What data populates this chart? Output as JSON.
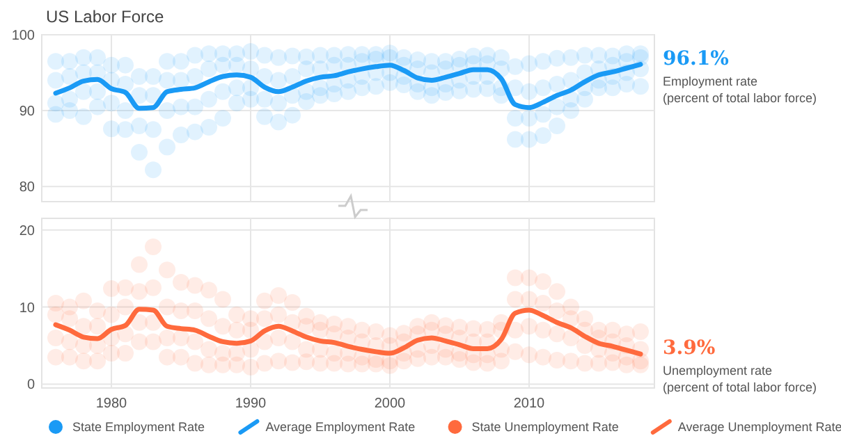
{
  "chart_data": [
    {
      "type": "scatter",
      "title": "US Labor Force",
      "xlim": [
        1975,
        2019
      ],
      "xticks": [
        1980,
        1990,
        2000,
        2010
      ],
      "ylim": [
        78,
        100
      ],
      "yticks": [
        80,
        90,
        100
      ],
      "grid": true,
      "tick_labels": "y",
      "legend": "bottom",
      "annotations": [
        {
          "text": "96.1%",
          "x": 2018,
          "y": 96.1
        },
        "Employment rate",
        "(percent of total labor force)"
      ],
      "series": [
        {
          "name": "State Employment Rate",
          "marker": "circle",
          "color": "#1a9af5",
          "x": [
            1976,
            1976,
            1976,
            1976,
            1977,
            1977,
            1977,
            1977,
            1978,
            1978,
            1978,
            1978,
            1979,
            1979,
            1979,
            1979,
            1980,
            1980,
            1980,
            1980,
            1981,
            1981,
            1981,
            1981,
            1982,
            1982,
            1982,
            1982,
            1983,
            1983,
            1983,
            1983,
            1984,
            1984,
            1984,
            1984,
            1985,
            1985,
            1985,
            1985,
            1986,
            1986,
            1986,
            1986,
            1987,
            1987,
            1987,
            1987,
            1988,
            1988,
            1988,
            1988,
            1989,
            1989,
            1989,
            1989,
            1990,
            1990,
            1990,
            1990,
            1991,
            1991,
            1991,
            1991,
            1992,
            1992,
            1992,
            1992,
            1993,
            1993,
            1993,
            1993,
            1994,
            1994,
            1994,
            1994,
            1995,
            1995,
            1995,
            1995,
            1996,
            1996,
            1996,
            1996,
            1997,
            1997,
            1997,
            1997,
            1998,
            1998,
            1998,
            1998,
            1999,
            1999,
            1999,
            1999,
            2000,
            2000,
            2000,
            2000,
            2001,
            2001,
            2001,
            2001,
            2002,
            2002,
            2002,
            2002,
            2003,
            2003,
            2003,
            2003,
            2004,
            2004,
            2004,
            2004,
            2005,
            2005,
            2005,
            2005,
            2006,
            2006,
            2006,
            2006,
            2007,
            2007,
            2007,
            2007,
            2008,
            2008,
            2008,
            2008,
            2009,
            2009,
            2009,
            2009,
            2010,
            2010,
            2010,
            2010,
            2011,
            2011,
            2011,
            2011,
            2012,
            2012,
            2012,
            2012,
            2013,
            2013,
            2013,
            2013,
            2014,
            2014,
            2014,
            2014,
            2015,
            2015,
            2015,
            2015,
            2016,
            2016,
            2016,
            2016,
            2017,
            2017,
            2017,
            2017,
            2018,
            2018,
            2018,
            2018
          ],
          "values": [
            96.5,
            94,
            91,
            89.5,
            96.5,
            94.5,
            91.5,
            90,
            97,
            95,
            92.5,
            89.2,
            97,
            95,
            92.5,
            90.5,
            96,
            94,
            91,
            87.6,
            96,
            93.5,
            90,
            87.5,
            94.5,
            92,
            88,
            84.5,
            94.5,
            92,
            87.5,
            82.2,
            96.5,
            94,
            90,
            85.2,
            96.5,
            94,
            90.5,
            86.8,
            97.3,
            94.5,
            90.5,
            87.2,
            97.5,
            95.5,
            91.5,
            87.8,
            97.5,
            96,
            92.5,
            89,
            97.5,
            96,
            93,
            91,
            97.8,
            95.5,
            93,
            91.5,
            97.3,
            94.5,
            91.5,
            89.2,
            97,
            94,
            91,
            88.5,
            97.2,
            94.5,
            92,
            89.4,
            97.1,
            95.5,
            92.5,
            91.2,
            97.3,
            95.5,
            93,
            92,
            97.3,
            96,
            93.5,
            92.2,
            97.4,
            96,
            94,
            92.5,
            97.4,
            96.5,
            94.5,
            93,
            97.4,
            96.8,
            95,
            93.2,
            97.6,
            97,
            95,
            93.7,
            97,
            96,
            94.5,
            93.4,
            96.7,
            95.5,
            93.5,
            92.5,
            96.5,
            95,
            93,
            92,
            96.5,
            95.5,
            93.5,
            92.4,
            96.8,
            96,
            94,
            92.6,
            97.2,
            96.2,
            94.5,
            92.8,
            97.3,
            96.2,
            94.5,
            92.9,
            97,
            95.5,
            93,
            92,
            95.8,
            93,
            89,
            86.2,
            96.2,
            92.5,
            89,
            86.2,
            96.5,
            93,
            89.5,
            86.7,
            96.9,
            93.5,
            90.5,
            88,
            97,
            94,
            91.5,
            90,
            97.3,
            95,
            93,
            91.5,
            97.3,
            95.5,
            94,
            93,
            97.2,
            96,
            94.5,
            93,
            97.5,
            96.5,
            95,
            93.5,
            97.5,
            97,
            95.5,
            93.2
          ]
        },
        {
          "name": "Average Employment Rate",
          "type": "line",
          "color": "#1a9af5",
          "x": [
            1976,
            1977,
            1978,
            1979,
            1980,
            1981,
            1982,
            1983,
            1984,
            1985,
            1986,
            1987,
            1988,
            1989,
            1990,
            1991,
            1992,
            1993,
            1994,
            1995,
            1996,
            1997,
            1998,
            1999,
            2000,
            2001,
            2002,
            2003,
            2004,
            2005,
            2006,
            2007,
            2008,
            2009,
            2010,
            2011,
            2012,
            2013,
            2014,
            2015,
            2016,
            2017,
            2018
          ],
          "values": [
            92.3,
            93.0,
            93.9,
            94.1,
            92.9,
            92.4,
            90.3,
            90.4,
            92.5,
            92.8,
            93.0,
            93.8,
            94.5,
            94.7,
            94.4,
            93.1,
            92.5,
            93.1,
            93.9,
            94.4,
            94.6,
            95.1,
            95.5,
            95.8,
            96.0,
            95.3,
            94.3,
            94.0,
            94.4,
            94.9,
            95.4,
            95.4,
            94.2,
            90.8,
            90.4,
            91.1,
            92.0,
            92.7,
            93.8,
            94.7,
            95.1,
            95.6,
            96.1
          ]
        }
      ]
    },
    {
      "type": "scatter",
      "xlim": [
        1975,
        2019
      ],
      "xticks": [
        1980,
        1990,
        2000,
        2010
      ],
      "ylim": [
        -0.5,
        21.5
      ],
      "yticks": [
        0,
        10,
        20
      ],
      "grid": true,
      "legend": "bottom",
      "annotations": [
        {
          "text": "3.9%",
          "x": 2018,
          "y": 3.9
        },
        "Unemployment rate",
        "(percent of total labor force)"
      ],
      "series": [
        {
          "name": "State Unemployment Rate",
          "marker": "circle",
          "color": "#ff6a3d",
          "x": [
            1976,
            1976,
            1976,
            1976,
            1977,
            1977,
            1977,
            1977,
            1978,
            1978,
            1978,
            1978,
            1979,
            1979,
            1979,
            1979,
            1980,
            1980,
            1980,
            1980,
            1981,
            1981,
            1981,
            1981,
            1982,
            1982,
            1982,
            1982,
            1983,
            1983,
            1983,
            1983,
            1984,
            1984,
            1984,
            1984,
            1985,
            1985,
            1985,
            1985,
            1986,
            1986,
            1986,
            1986,
            1987,
            1987,
            1987,
            1987,
            1988,
            1988,
            1988,
            1988,
            1989,
            1989,
            1989,
            1989,
            1990,
            1990,
            1990,
            1990,
            1991,
            1991,
            1991,
            1991,
            1992,
            1992,
            1992,
            1992,
            1993,
            1993,
            1993,
            1993,
            1994,
            1994,
            1994,
            1994,
            1995,
            1995,
            1995,
            1995,
            1996,
            1996,
            1996,
            1996,
            1997,
            1997,
            1997,
            1997,
            1998,
            1998,
            1998,
            1998,
            1999,
            1999,
            1999,
            1999,
            2000,
            2000,
            2000,
            2000,
            2001,
            2001,
            2001,
            2001,
            2002,
            2002,
            2002,
            2002,
            2003,
            2003,
            2003,
            2003,
            2004,
            2004,
            2004,
            2004,
            2005,
            2005,
            2005,
            2005,
            2006,
            2006,
            2006,
            2006,
            2007,
            2007,
            2007,
            2007,
            2008,
            2008,
            2008,
            2008,
            2009,
            2009,
            2009,
            2009,
            2010,
            2010,
            2010,
            2010,
            2011,
            2011,
            2011,
            2011,
            2012,
            2012,
            2012,
            2012,
            2013,
            2013,
            2013,
            2013,
            2014,
            2014,
            2014,
            2014,
            2015,
            2015,
            2015,
            2015,
            2016,
            2016,
            2016,
            2016,
            2017,
            2017,
            2017,
            2017,
            2018,
            2018,
            2018,
            2018
          ],
          "values": [
            3.5,
            6,
            9,
            10.5,
            3.5,
            5.5,
            8.5,
            10,
            3,
            5,
            7.5,
            10.8,
            3,
            5,
            7.5,
            9.5,
            4,
            6,
            9,
            12.4,
            4,
            6.5,
            10,
            12.5,
            5.5,
            8,
            12,
            15.5,
            5.5,
            8,
            12.5,
            17.8,
            3.5,
            6,
            10,
            14.8,
            3.5,
            6,
            9.5,
            13.2,
            2.7,
            5.5,
            9.5,
            12.8,
            2.5,
            4.5,
            8.5,
            12.2,
            2.5,
            4,
            7.5,
            11,
            2.5,
            4,
            7,
            9,
            2.2,
            4.5,
            7,
            8.5,
            2.7,
            5.5,
            8.5,
            10.8,
            3,
            6,
            9,
            11.5,
            2.8,
            5.5,
            8,
            10.6,
            2.9,
            4.5,
            7.5,
            8.8,
            2.7,
            4.5,
            7,
            8,
            2.7,
            4,
            6.5,
            7.8,
            2.6,
            4,
            6,
            7.5,
            2.6,
            3.5,
            5.5,
            7,
            2.6,
            3.2,
            5,
            6.8,
            2.4,
            3,
            5,
            6.3,
            3,
            4,
            5.5,
            6.6,
            3.3,
            4.5,
            6.5,
            7.5,
            3.5,
            5,
            7,
            8,
            3.5,
            4.5,
            6.5,
            7.6,
            3.2,
            4,
            6,
            7.4,
            2.8,
            3.8,
            5.5,
            7.2,
            2.7,
            3.8,
            5.5,
            7.1,
            3,
            4.5,
            7,
            8,
            4.2,
            7,
            11,
            13.8,
            3.8,
            7.5,
            11,
            13.8,
            3.5,
            7,
            10.5,
            13.3,
            3.1,
            6.5,
            9.5,
            12,
            3,
            6,
            8.5,
            10,
            2.7,
            5,
            7,
            8.5,
            2.7,
            4.5,
            6,
            7,
            2.8,
            4,
            5.5,
            7,
            2.5,
            3.5,
            5,
            6.5,
            2.5,
            3,
            4.5,
            6.8
          ]
        },
        {
          "name": "Average Unemployment Rate",
          "type": "line",
          "color": "#ff6a3d",
          "x": [
            1976,
            1977,
            1978,
            1979,
            1980,
            1981,
            1982,
            1983,
            1984,
            1985,
            1986,
            1987,
            1988,
            1989,
            1990,
            1991,
            1992,
            1993,
            1994,
            1995,
            1996,
            1997,
            1998,
            1999,
            2000,
            2001,
            2002,
            2003,
            2004,
            2005,
            2006,
            2007,
            2008,
            2009,
            2010,
            2011,
            2012,
            2013,
            2014,
            2015,
            2016,
            2017,
            2018
          ],
          "values": [
            7.7,
            7.0,
            6.1,
            5.9,
            7.1,
            7.6,
            9.7,
            9.6,
            7.5,
            7.2,
            7.0,
            6.2,
            5.5,
            5.3,
            5.6,
            6.9,
            7.5,
            6.9,
            6.1,
            5.6,
            5.4,
            4.9,
            4.5,
            4.2,
            4.0,
            4.7,
            5.7,
            6.0,
            5.6,
            5.1,
            4.6,
            4.6,
            5.8,
            9.2,
            9.6,
            8.9,
            8.0,
            7.3,
            6.2,
            5.3,
            4.9,
            4.4,
            3.9
          ]
        }
      ]
    }
  ]
}
